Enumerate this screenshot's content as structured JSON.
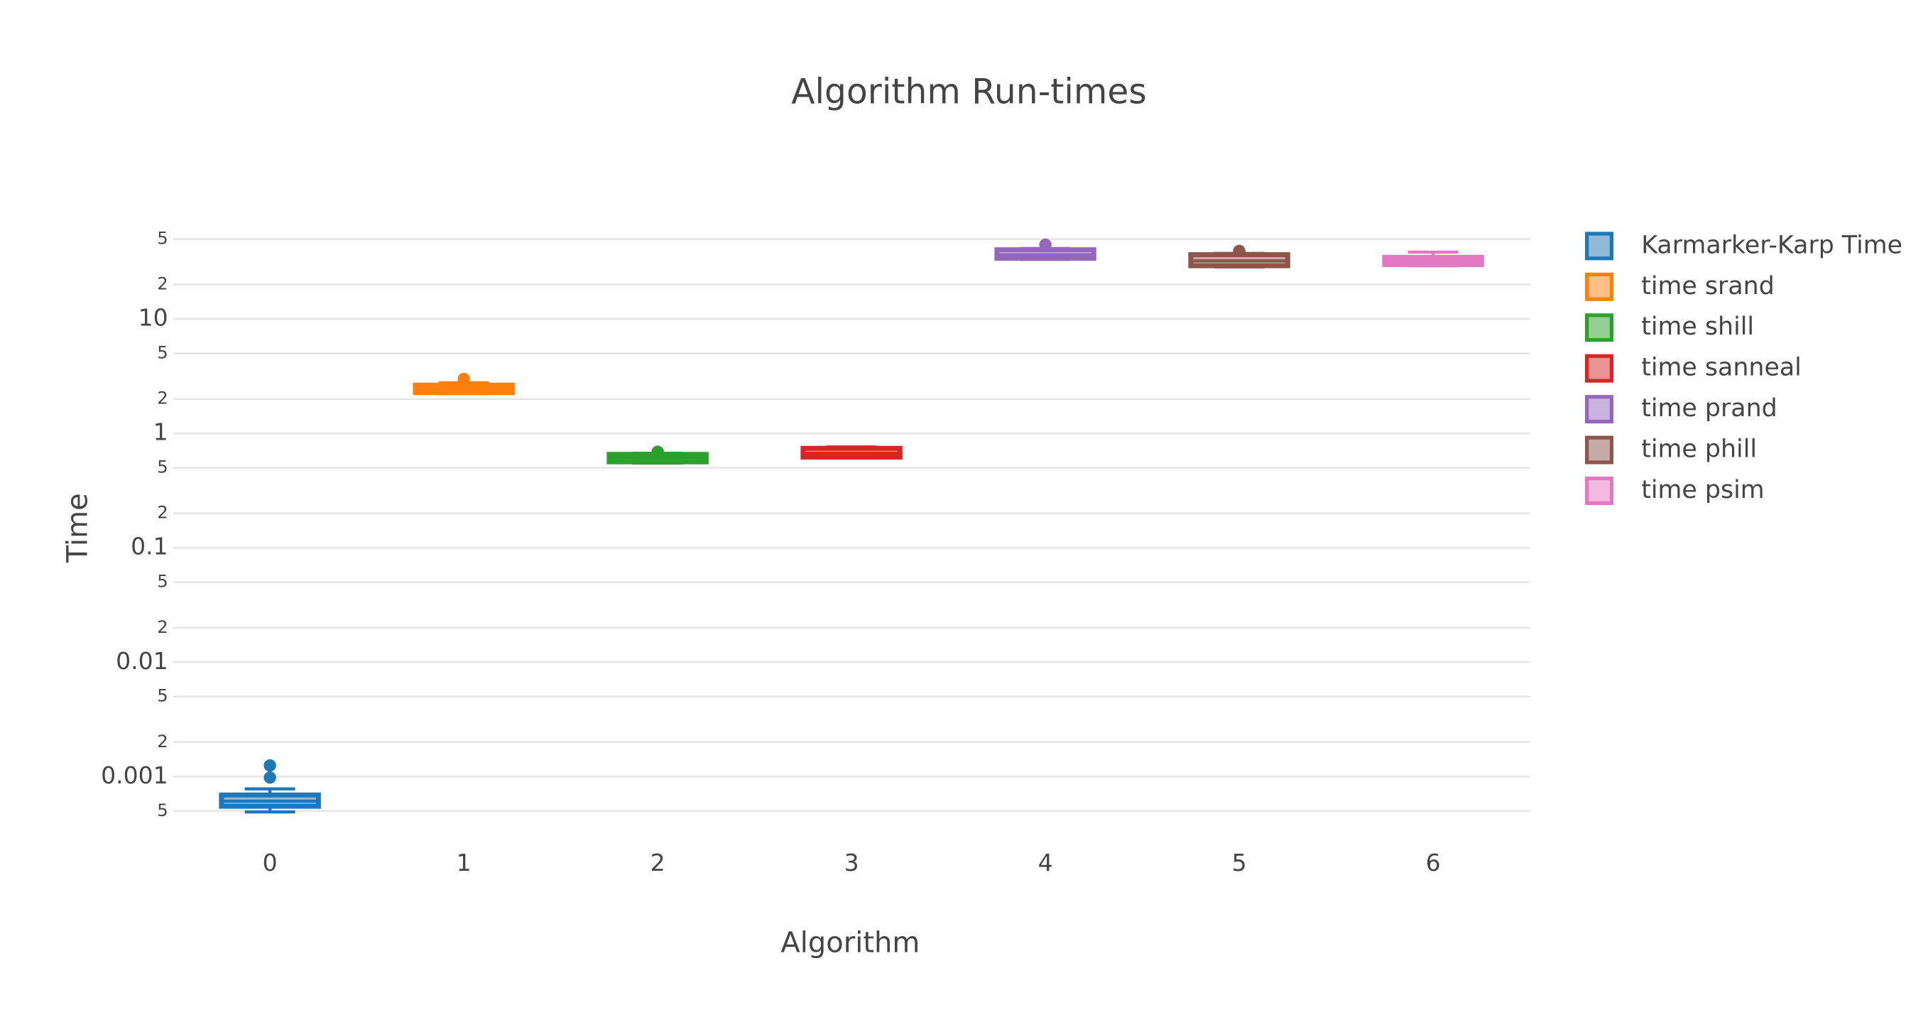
{
  "chart_data": {
    "type": "box",
    "title": "Algorithm Run-times",
    "x_label": "Algorithm",
    "y_label": "Time",
    "categories": [
      "0",
      "1",
      "2",
      "3",
      "4",
      "5",
      "6"
    ],
    "log_y": true,
    "grid": true,
    "ylim": [
      0.0004,
      60
    ],
    "yticks": [
      {
        "value": 0.0005,
        "label": "5"
      },
      0.001,
      {
        "value": 0.002,
        "label": "2"
      },
      {
        "value": 0.005,
        "label": "5"
      },
      0.01,
      {
        "value": 0.02,
        "label": "2"
      },
      {
        "value": 0.05,
        "label": "5"
      },
      0.1,
      {
        "value": 0.2,
        "label": "2"
      },
      {
        "value": 0.5,
        "label": "5"
      },
      1,
      {
        "value": 2,
        "label": "2"
      },
      {
        "value": 5,
        "label": "5"
      },
      10,
      {
        "value": 20,
        "label": "2"
      },
      {
        "value": 50,
        "label": "5"
      }
    ],
    "series": [
      {
        "name": "Karmarker-Karp Time",
        "color": "#1f77b4",
        "lower": 0.00049,
        "q1": 0.00055,
        "median": 0.00061,
        "q3": 0.00069,
        "upper": 0.00078,
        "outliers": [
          0.00098,
          0.00125
        ]
      },
      {
        "name": "time srand",
        "color": "#ff7f0e",
        "lower": 2.22,
        "q1": 2.27,
        "median": 2.45,
        "q3": 2.64,
        "upper": 2.77,
        "outliers": [
          2.99
        ]
      },
      {
        "name": "time shill",
        "color": "#2ca02c",
        "lower": 0.55,
        "q1": 0.564,
        "median": 0.61,
        "q3": 0.655,
        "upper": 0.67,
        "outliers": [
          0.69
        ]
      },
      {
        "name": "time sanneal",
        "color": "#d62728",
        "lower": 0.61,
        "q1": 0.62,
        "median": 0.67,
        "q3": 0.74,
        "upper": 0.76,
        "outliers": []
      },
      {
        "name": "time prand",
        "color": "#9467bd",
        "lower": 33.2,
        "q1": 33.9,
        "median": 36.5,
        "q3": 40.3,
        "upper": 41.3,
        "outliers": [
          44.6
        ]
      },
      {
        "name": "time phill",
        "color": "#8c564b",
        "lower": 28.5,
        "q1": 29.2,
        "median": 32.2,
        "q3": 36.5,
        "upper": 37.4,
        "outliers": [
          39.3
        ]
      },
      {
        "name": "time psim",
        "color": "#e377c2",
        "lower": 29.2,
        "q1": 29.9,
        "median": 32.2,
        "q3": 34.6,
        "upper": 38.4,
        "outliers": []
      }
    ]
  }
}
